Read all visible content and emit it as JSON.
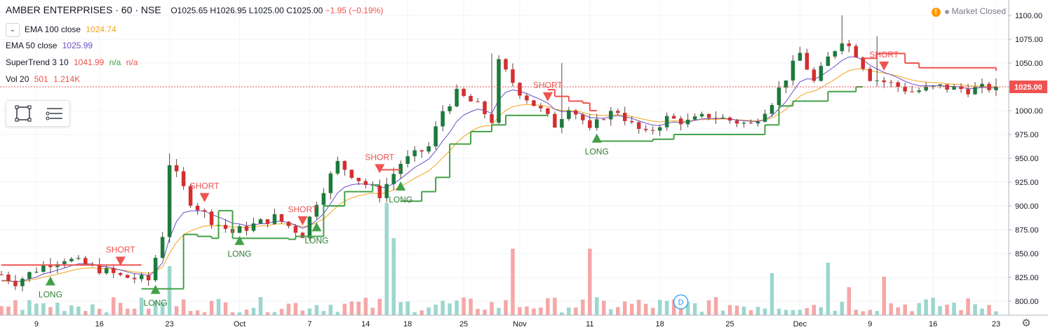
{
  "header": {
    "symbol": "AMBER ENTERPRISES · 60 · NSE",
    "open": "O1025.65",
    "high": "H1026.95",
    "low": "L1025.00",
    "close": "C1025.00",
    "change": "−1.95 (−0.19%)"
  },
  "legend": {
    "ema100": {
      "label": "EMA 100 close",
      "value": "1024.74",
      "color": "#f4a31a"
    },
    "ema50": {
      "label": "EMA 50 close",
      "value": "1025.99",
      "color": "#6a4ec8"
    },
    "supertrend": {
      "label": "SuperTrend 3 10",
      "value": "1041.99",
      "na1": "n/a",
      "na2": "n/a",
      "color": "#ef5350",
      "na_color": "#43a047"
    },
    "volume": {
      "label": "Vol 20",
      "value1": "501",
      "value2": "1.214K",
      "color": "#ef5350"
    }
  },
  "status": {
    "market": "Market Closed",
    "warn_glyph": "!"
  },
  "icons": {
    "collapse": "chevron-down-icon",
    "rect": "rectangle-tool-icon",
    "menu": "lines-menu-icon",
    "settings": "gear-icon",
    "dividends": "dividend-marker-icon"
  },
  "chart_data": {
    "type": "candlestick",
    "ylim": [
      787,
      1105
    ],
    "y_ticks": [
      "1100.00",
      "1075.00",
      "1050.00",
      "1025.00",
      "1000.00",
      "975.00",
      "950.00",
      "925.00",
      "900.00",
      "875.00",
      "850.00",
      "825.00",
      "800.00"
    ],
    "last_price_label": "1025.00",
    "last_price": 1025.0,
    "x_ticks": [
      "9",
      "16",
      "23",
      "Oct",
      "7",
      "14",
      "18",
      "25",
      "Nov",
      "11",
      "18",
      "25",
      "Dec",
      "9",
      "16",
      "23"
    ],
    "anchors": [
      [
        0,
        828
      ],
      [
        2,
        820
      ],
      [
        6,
        838
      ],
      [
        9,
        845
      ],
      [
        13,
        836
      ],
      [
        17,
        826
      ],
      [
        21,
        822
      ],
      [
        23,
        870
      ],
      [
        24,
        945
      ],
      [
        27,
        905
      ],
      [
        30,
        885
      ],
      [
        33,
        872
      ],
      [
        36,
        880
      ],
      [
        39,
        888
      ],
      [
        43,
        870
      ],
      [
        45,
        905
      ],
      [
        48,
        945
      ],
      [
        51,
        928
      ],
      [
        54,
        912
      ],
      [
        57,
        945
      ],
      [
        61,
        962
      ],
      [
        63,
        1000
      ],
      [
        65,
        1018
      ],
      [
        68,
        1005
      ],
      [
        70,
        990
      ],
      [
        71,
        1050
      ],
      [
        74,
        1020
      ],
      [
        77,
        1000
      ],
      [
        79,
        985
      ],
      [
        81,
        1005
      ],
      [
        83,
        990
      ],
      [
        84,
        978
      ],
      [
        86,
        995
      ],
      [
        88,
        1000
      ],
      [
        90,
        985
      ],
      [
        92,
        975
      ],
      [
        95,
        992
      ],
      [
        98,
        988
      ],
      [
        101,
        995
      ],
      [
        104,
        990
      ],
      [
        107,
        985
      ],
      [
        110,
        1010
      ],
      [
        112,
        1035
      ],
      [
        114,
        1060
      ],
      [
        116,
        1030
      ],
      [
        118,
        1055
      ],
      [
        120,
        1075
      ],
      [
        122,
        1060
      ],
      [
        124,
        1035
      ],
      [
        127,
        1028
      ],
      [
        130,
        1020
      ],
      [
        134,
        1025
      ],
      [
        138,
        1022
      ],
      [
        142,
        1025
      ]
    ],
    "supertrend": [
      [
        0,
        838,
        "short"
      ],
      [
        19,
        838,
        "short"
      ],
      [
        20,
        813,
        "long"
      ],
      [
        26,
        870,
        "long"
      ],
      [
        28,
        868,
        "long"
      ],
      [
        30,
        866,
        "long"
      ],
      [
        31,
        895,
        "long"
      ],
      [
        33,
        866,
        "long"
      ],
      [
        37,
        866,
        "long"
      ],
      [
        38,
        866,
        "long"
      ],
      [
        41,
        865,
        "long"
      ],
      [
        42,
        868,
        "long"
      ],
      [
        46,
        900,
        "long"
      ],
      [
        49,
        915,
        "long"
      ],
      [
        51,
        915,
        "long"
      ],
      [
        53,
        922,
        "long"
      ],
      [
        54,
        938,
        "short"
      ],
      [
        56,
        938,
        "short"
      ],
      [
        57,
        905,
        "long"
      ],
      [
        60,
        915,
        "long"
      ],
      [
        62,
        930,
        "long"
      ],
      [
        64,
        965,
        "long"
      ],
      [
        67,
        978,
        "long"
      ],
      [
        70,
        985,
        "long"
      ],
      [
        72,
        995,
        "long"
      ],
      [
        77,
        995,
        "long"
      ],
      [
        78,
        1022,
        "short"
      ],
      [
        79,
        1015,
        "short"
      ],
      [
        81,
        1010,
        "short"
      ],
      [
        83,
        1008,
        "short"
      ],
      [
        84,
        1000,
        "short"
      ],
      [
        85,
        968,
        "long"
      ],
      [
        90,
        968,
        "long"
      ],
      [
        93,
        970,
        "long"
      ],
      [
        96,
        975,
        "long"
      ],
      [
        106,
        975,
        "long"
      ],
      [
        109,
        985,
        "long"
      ],
      [
        111,
        1005,
        "long"
      ],
      [
        113,
        1010,
        "long"
      ],
      [
        118,
        1020,
        "long"
      ],
      [
        122,
        1025,
        "long"
      ],
      [
        123,
        1055,
        "short"
      ],
      [
        125,
        1060,
        "short"
      ],
      [
        129,
        1050,
        "short"
      ],
      [
        131,
        1045,
        "short"
      ],
      [
        142,
        1042,
        "short"
      ]
    ],
    "signals": [
      {
        "i": 7,
        "kind": "long",
        "text": "LONG"
      },
      {
        "i": 17,
        "kind": "short",
        "text": "SHORT"
      },
      {
        "i": 22,
        "kind": "long",
        "text": "LONG"
      },
      {
        "i": 29,
        "kind": "short",
        "text": "SHORT"
      },
      {
        "i": 34,
        "kind": "long",
        "text": "LONG"
      },
      {
        "i": 43,
        "kind": "short",
        "text": "SHORT"
      },
      {
        "i": 45,
        "kind": "long",
        "text": "LONG"
      },
      {
        "i": 54,
        "kind": "short",
        "text": "SHORT"
      },
      {
        "i": 57,
        "kind": "long",
        "text": "LONG"
      },
      {
        "i": 78,
        "kind": "short",
        "text": "SHORT"
      },
      {
        "i": 85,
        "kind": "long",
        "text": "LONG"
      },
      {
        "i": 126,
        "kind": "short",
        "text": "SHORT"
      }
    ],
    "dividend_marker": {
      "i": 97,
      "text": "D"
    },
    "volume_spikes": [
      [
        24,
        70
      ],
      [
        55,
        160
      ],
      [
        56,
        110
      ],
      [
        73,
        95
      ],
      [
        84,
        95
      ],
      [
        110,
        60
      ],
      [
        118,
        75
      ],
      [
        121,
        40
      ],
      [
        126,
        55
      ]
    ]
  }
}
